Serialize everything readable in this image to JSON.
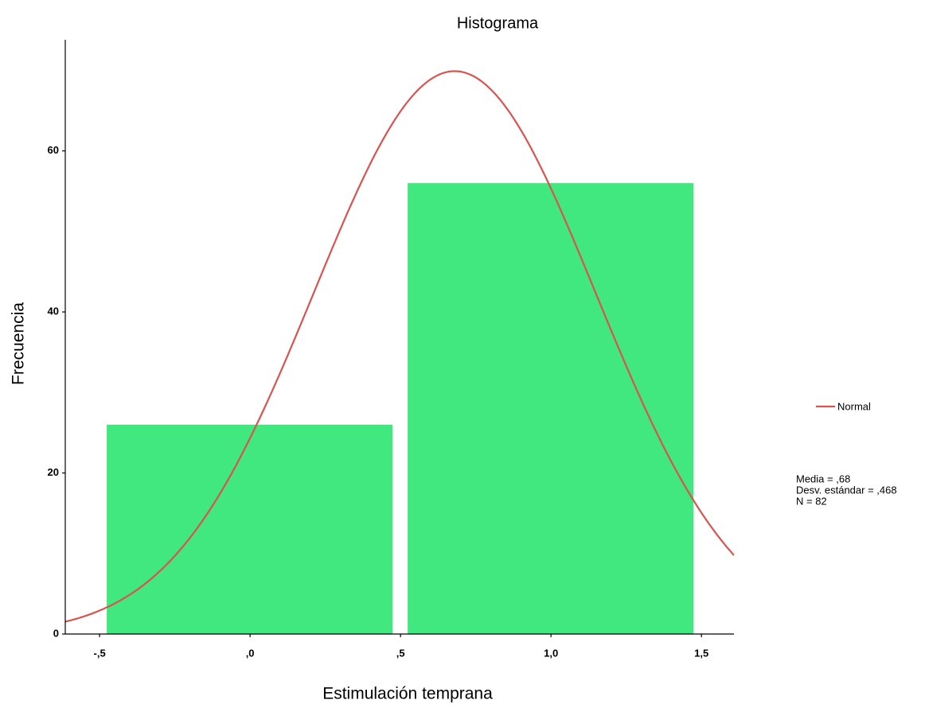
{
  "chart_data": {
    "type": "histogram",
    "title": "Histograma",
    "xlabel": "Estimulación temprana",
    "ylabel": "Frecuencia",
    "bins": [
      -0.5,
      0.5,
      1.5
    ],
    "values": [
      26,
      56
    ],
    "color": "#40e87f",
    "xlim": [
      -0.614,
      1.608
    ],
    "ylim": [
      0,
      73.8
    ],
    "xticks": [
      {
        "value": -0.5,
        "label": "-,5"
      },
      {
        "value": 0,
        "label": ",0"
      },
      {
        "value": 0.5,
        "label": ",5"
      },
      {
        "value": 1,
        "label": "1,0"
      },
      {
        "value": 1.5,
        "label": "1,5"
      }
    ],
    "yticks": [
      0,
      20,
      40,
      60
    ],
    "grid": false,
    "curve": {
      "name": "Normal",
      "color": "#d9534f"
    },
    "stats": {
      "values": [
        0.68,
        0.468,
        82
      ],
      "value_labels": [
        "Media = ,68",
        "Desv. estándar = ,468",
        "N = 82"
      ]
    }
  }
}
